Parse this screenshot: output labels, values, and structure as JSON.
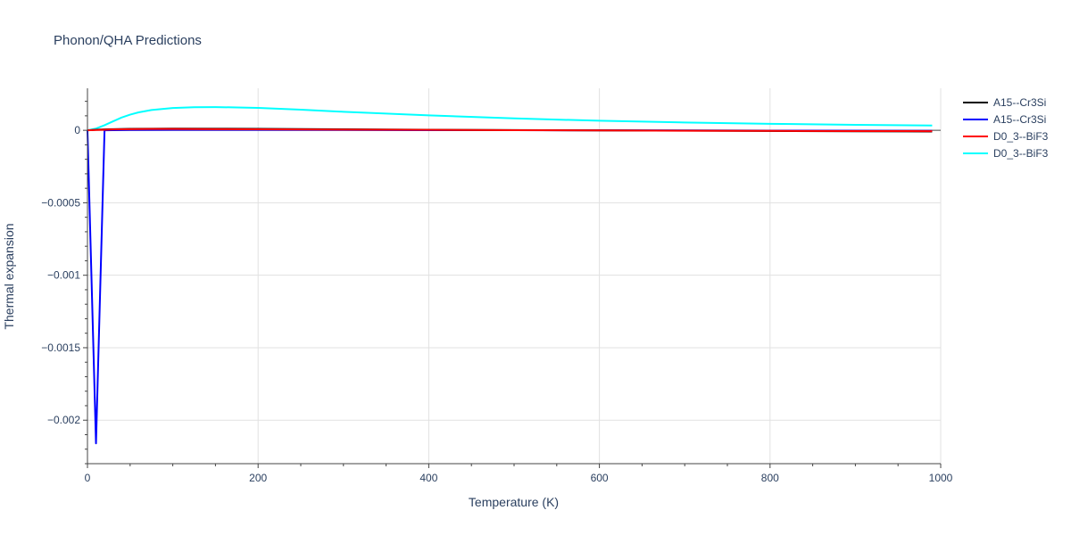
{
  "chart_data": {
    "type": "line",
    "title": "Phonon/QHA Predictions",
    "xlabel": "Temperature (K)",
    "ylabel": "Thermal expansion",
    "xlim": [
      0,
      1000
    ],
    "ylim": [
      -0.0023,
      0.00029
    ],
    "x_ticks": [
      0,
      200,
      400,
      600,
      800,
      1000
    ],
    "x_tick_labels": [
      "0",
      "200",
      "400",
      "600",
      "800",
      "1000"
    ],
    "y_ticks": [
      0,
      -0.0005,
      -0.001,
      -0.0015,
      -0.002
    ],
    "y_tick_labels": [
      "0",
      "−0.0005",
      "−0.001",
      "−0.0015",
      "−0.002"
    ],
    "grid": true,
    "legend_position": "top-right",
    "series": [
      {
        "name": "A15--Cr3Si",
        "color": "#000000",
        "x": [
          0,
          10,
          20,
          30,
          50,
          75,
          100,
          150,
          200,
          300,
          400,
          500,
          600,
          700,
          800,
          900,
          990
        ],
        "y": [
          0,
          4e-06,
          6e-06,
          8e-06,
          1e-05,
          1.1e-05,
          1.2e-05,
          1.1e-05,
          1e-05,
          7e-06,
          4e-06,
          1.5e-06,
          -5e-07,
          -2.5e-06,
          -4.5e-06,
          -6.5e-06,
          -8.5e-06
        ]
      },
      {
        "name": "A15--Cr3Si",
        "color": "#0000ff",
        "x": [
          0,
          10,
          20,
          30,
          50,
          100,
          200,
          300,
          400,
          500,
          600,
          700,
          800,
          900,
          990
        ],
        "y": [
          0,
          -0.00216,
          0,
          1e-06,
          2e-06,
          3e-06,
          3e-06,
          2e-06,
          1e-06,
          5e-07,
          0,
          -1e-06,
          -2e-06,
          -3e-06,
          -4e-06
        ]
      },
      {
        "name": "D0_3--BiF3",
        "color": "#ff0000",
        "x": [
          0,
          10,
          20,
          30,
          50,
          75,
          100,
          150,
          200,
          300,
          400,
          500,
          600,
          700,
          800,
          900,
          990
        ],
        "y": [
          0,
          2e-06,
          4e-06,
          6e-06,
          8e-06,
          9e-06,
          9e-06,
          8e-06,
          7e-06,
          5e-06,
          3e-06,
          1e-06,
          -1e-06,
          -3e-06,
          -4e-06,
          -5e-06,
          -6e-06
        ]
      },
      {
        "name": "D0_3--BiF3",
        "color": "#00ffff",
        "x": [
          0,
          10,
          20,
          30,
          40,
          50,
          60,
          75,
          100,
          125,
          150,
          175,
          200,
          250,
          300,
          400,
          500,
          600,
          700,
          800,
          900,
          990
        ],
        "y": [
          0,
          1.2e-05,
          3.5e-05,
          6.2e-05,
          8.8e-05,
          0.000108,
          0.000124,
          0.00014,
          0.000154,
          0.000159,
          0.00016,
          0.000158,
          0.000155,
          0.000142,
          0.000128,
          0.000103,
          8.2e-05,
          6.6e-05,
          5.4e-05,
          4.5e-05,
          3.8e-05,
          3.3e-05
        ]
      }
    ]
  }
}
